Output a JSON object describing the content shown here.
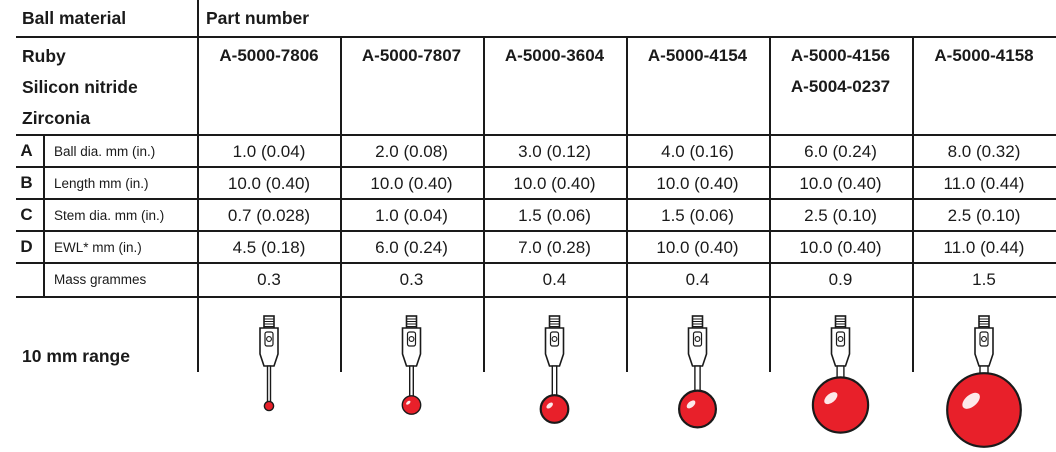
{
  "header": {
    "ball_material": "Ball material",
    "part_number": "Part number"
  },
  "materials": [
    "Ruby",
    "Silicon nitride",
    "Zirconia"
  ],
  "part_numbers": [
    [
      "A-5000-7806"
    ],
    [
      "A-5000-7807"
    ],
    [
      "A-5000-3604"
    ],
    [
      "A-5000-4154"
    ],
    [
      "A-5000-4156",
      "A-5004-0237"
    ],
    [
      "A-5000-4158"
    ]
  ],
  "rows": [
    {
      "letter": "A",
      "label": "Ball dia. mm (in.)",
      "values": [
        "1.0 (0.04)",
        "2.0 (0.08)",
        "3.0 (0.12)",
        "4.0 (0.16)",
        "6.0 (0.24)",
        "8.0 (0.32)"
      ]
    },
    {
      "letter": "B",
      "label": "Length mm (in.)",
      "values": [
        "10.0 (0.40)",
        "10.0 (0.40)",
        "10.0 (0.40)",
        "10.0 (0.40)",
        "10.0 (0.40)",
        "11.0 (0.44)"
      ]
    },
    {
      "letter": "C",
      "label": "Stem dia. mm (in.)",
      "values": [
        "0.7 (0.028)",
        "1.0 (0.04)",
        "1.5 (0.06)",
        "1.5 (0.06)",
        "2.5 (0.10)",
        "2.5 (0.10)"
      ]
    },
    {
      "letter": "D",
      "label": "EWL* mm (in.)",
      "values": [
        "4.5 (0.18)",
        "6.0 (0.24)",
        "7.0 (0.28)",
        "10.0 (0.40)",
        "10.0 (0.40)",
        "11.0 (0.44)"
      ]
    },
    {
      "letter": "",
      "label": "Mass grammes",
      "values": [
        "0.3",
        "0.3",
        "0.4",
        "0.4",
        "0.9",
        "1.5"
      ]
    }
  ],
  "range_label": "10 mm range",
  "ball_color": "#e8202a",
  "line_color": "#1a1a1a",
  "probe_ball_diameters_mm": [
    1.0,
    2.0,
    3.0,
    4.0,
    6.0,
    8.0
  ]
}
